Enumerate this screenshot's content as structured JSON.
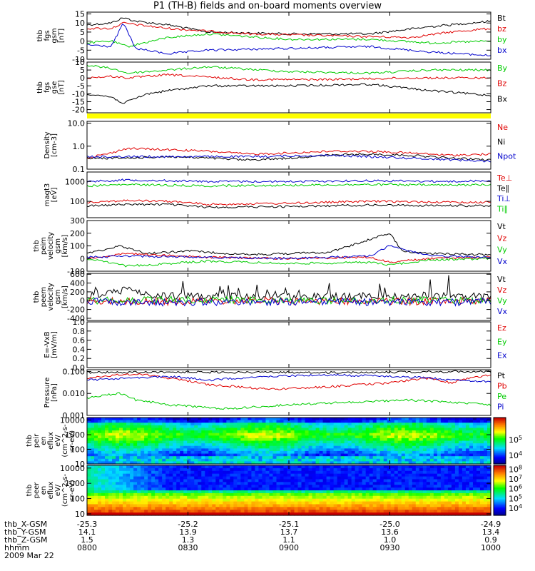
{
  "title": "P1  (TH-B) fields and on-board moments overview",
  "colors": {
    "black": "#000000",
    "red": "#e00000",
    "green": "#00cc00",
    "blue": "#0000cc",
    "yellow": "#ffff00"
  },
  "chart_data": [
    {
      "type": "line",
      "ylabel": [
        "thb",
        "fgs",
        "gsm",
        "[nT]"
      ],
      "ylim": [
        -10,
        16
      ],
      "yticks": [
        -10,
        -5,
        0,
        5,
        10,
        15
      ],
      "ytick_labels": [
        "-10",
        "-5",
        "0",
        "5",
        "10",
        "15"
      ],
      "legend": [
        {
          "name": "Bt",
          "color": "black"
        },
        {
          "name": "bz",
          "color": "red"
        },
        {
          "name": "by",
          "color": "green"
        },
        {
          "name": "bx",
          "color": "blue"
        }
      ],
      "series": [
        {
          "name": "Bt",
          "color": "black",
          "x": [
            0,
            0.06,
            0.09,
            0.12,
            0.2,
            0.3,
            0.5,
            0.7,
            0.85,
            1
          ],
          "values": [
            9,
            10,
            13,
            11,
            9,
            5,
            4,
            4,
            8,
            11
          ]
        },
        {
          "name": "bz",
          "color": "red",
          "x": [
            0,
            0.06,
            0.09,
            0.2,
            0.4,
            0.6,
            0.8,
            0.9,
            1
          ],
          "values": [
            7,
            7,
            10,
            7,
            4,
            3,
            2,
            5,
            7
          ]
        },
        {
          "name": "by",
          "color": "green",
          "x": [
            0,
            0.06,
            0.1,
            0.2,
            0.3,
            0.5,
            0.7,
            0.85,
            1
          ],
          "values": [
            -1,
            0,
            -3,
            2,
            4,
            1,
            1,
            -1,
            0
          ]
        },
        {
          "name": "bx",
          "color": "blue",
          "x": [
            0,
            0.06,
            0.09,
            0.12,
            0.2,
            0.3,
            0.5,
            0.7,
            0.85,
            1
          ],
          "values": [
            -2,
            -3,
            10,
            -4,
            -7,
            -5,
            -4,
            -3,
            -6,
            -8
          ]
        }
      ]
    },
    {
      "type": "line",
      "ylabel": [
        "thb",
        "fgs",
        "gse",
        "[nT]"
      ],
      "ylim": [
        -22,
        10
      ],
      "yticks": [
        -20,
        -15,
        -10,
        -5,
        0,
        5,
        10
      ],
      "ytick_labels": [
        "-20",
        "-15",
        "-10",
        "-5",
        "0",
        "5",
        "10"
      ],
      "legend": [
        {
          "name": "By",
          "color": "green"
        },
        {
          "name": "Bz",
          "color": "red"
        },
        {
          "name": "Bx",
          "color": "black"
        }
      ],
      "series": [
        {
          "name": "By",
          "color": "green",
          "x": [
            0,
            0.06,
            0.1,
            0.2,
            0.3,
            0.5,
            0.7,
            0.85,
            1
          ],
          "values": [
            8,
            6,
            3,
            5,
            7,
            4,
            3,
            5,
            5
          ]
        },
        {
          "name": "Bz",
          "color": "red",
          "x": [
            0,
            0.06,
            0.1,
            0.2,
            0.4,
            0.6,
            0.8,
            1
          ],
          "values": [
            0,
            1,
            0,
            2,
            -1,
            -1,
            0,
            0
          ]
        },
        {
          "name": "Bx",
          "color": "black",
          "x": [
            0,
            0.06,
            0.09,
            0.15,
            0.2,
            0.3,
            0.5,
            0.7,
            0.85,
            1
          ],
          "values": [
            -10,
            -12,
            -16,
            -10,
            -8,
            -5,
            -5,
            -4,
            -8,
            -11
          ]
        }
      ]
    },
    {
      "type": "line",
      "ylabel": [
        "Density",
        "[cm-3]"
      ],
      "scale": "log",
      "ylim": [
        0.1,
        12
      ],
      "yticks": [
        0.1,
        1.0,
        10.0
      ],
      "ytick_labels": [
        "0.1",
        "1.0",
        "10.0"
      ],
      "legend": [
        {
          "name": "Ne",
          "color": "red"
        },
        {
          "name": "Ni",
          "color": "black"
        },
        {
          "name": "Npot",
          "color": "blue"
        }
      ],
      "series": [
        {
          "name": "Ne",
          "color": "red",
          "x": [
            0,
            0.06,
            0.1,
            0.2,
            0.3,
            0.4,
            0.5,
            0.6,
            0.7,
            0.8,
            0.9,
            1
          ],
          "values": [
            0.3,
            0.5,
            0.8,
            0.7,
            0.6,
            0.45,
            0.5,
            0.6,
            0.6,
            0.5,
            0.4,
            0.45
          ]
        },
        {
          "name": "Ni",
          "color": "black",
          "x": [
            0,
            0.1,
            0.2,
            0.3,
            0.4,
            0.5,
            0.6,
            0.7,
            0.8,
            0.9,
            1
          ],
          "values": [
            0.3,
            0.3,
            0.35,
            0.3,
            0.25,
            0.3,
            0.4,
            0.45,
            0.4,
            0.3,
            0.25
          ]
        },
        {
          "name": "Npot",
          "color": "blue",
          "x": [
            0,
            0.2,
            0.4,
            0.6,
            0.8,
            1
          ],
          "values": [
            0.35,
            0.35,
            0.35,
            0.4,
            0.3,
            0.22
          ]
        }
      ]
    },
    {
      "type": "line",
      "ylabel": [
        "magt3",
        "[eV]"
      ],
      "scale": "log",
      "ylim": [
        15,
        3000
      ],
      "yticks": [
        100,
        1000
      ],
      "ytick_labels": [
        "100",
        "1000"
      ],
      "legend": [
        {
          "name": "Te⊥",
          "color": "red"
        },
        {
          "name": "Te∥",
          "color": "black"
        },
        {
          "name": "Ti⊥",
          "color": "blue"
        },
        {
          "name": "Ti∥",
          "color": "green"
        }
      ],
      "series": [
        {
          "name": "Ti⊥",
          "color": "blue",
          "x": [
            0,
            0.1,
            0.3,
            0.5,
            0.7,
            0.9,
            1
          ],
          "values": [
            1000,
            1200,
            1000,
            1000,
            1100,
            1000,
            1100
          ]
        },
        {
          "name": "Ti∥",
          "color": "green",
          "x": [
            0,
            0.1,
            0.3,
            0.5,
            0.7,
            0.9,
            1
          ],
          "values": [
            600,
            700,
            600,
            650,
            700,
            650,
            700
          ]
        },
        {
          "name": "Te⊥",
          "color": "red",
          "x": [
            0,
            0.1,
            0.2,
            0.3,
            0.5,
            0.7,
            0.9,
            1
          ],
          "values": [
            90,
            110,
            100,
            70,
            80,
            100,
            90,
            90
          ]
        },
        {
          "name": "Te∥",
          "color": "black",
          "x": [
            0,
            0.1,
            0.2,
            0.3,
            0.5,
            0.7,
            0.9,
            1
          ],
          "values": [
            60,
            70,
            70,
            50,
            55,
            65,
            60,
            60
          ]
        }
      ]
    },
    {
      "type": "line",
      "ylabel": [
        "thb",
        "peim",
        "velocity",
        "gsm",
        "[km/s]"
      ],
      "ylim": [
        -100,
        300
      ],
      "yticks": [
        -100,
        0,
        100,
        200,
        300
      ],
      "ytick_labels": [
        "-100",
        "0",
        "100",
        "200",
        "300"
      ],
      "legend": [
        {
          "name": "Vt",
          "color": "black"
        },
        {
          "name": "Vz",
          "color": "red"
        },
        {
          "name": "Vy",
          "color": "green"
        },
        {
          "name": "Vx",
          "color": "blue"
        }
      ],
      "series": [
        {
          "name": "Vt",
          "color": "black",
          "x": [
            0,
            0.08,
            0.15,
            0.25,
            0.4,
            0.6,
            0.75,
            0.78,
            0.85,
            1
          ],
          "values": [
            40,
            100,
            40,
            60,
            30,
            50,
            200,
            60,
            40,
            30
          ]
        },
        {
          "name": "Vz",
          "color": "red",
          "x": [
            0,
            0.1,
            0.3,
            0.5,
            0.7,
            0.75,
            0.85,
            1
          ],
          "values": [
            0,
            40,
            10,
            0,
            10,
            -30,
            0,
            10
          ]
        },
        {
          "name": "Vy",
          "color": "green",
          "x": [
            0,
            0.1,
            0.3,
            0.5,
            0.7,
            0.75,
            0.85,
            1
          ],
          "values": [
            0,
            -60,
            -20,
            -40,
            -30,
            -50,
            -10,
            0
          ]
        },
        {
          "name": "Vx",
          "color": "blue",
          "x": [
            0,
            0.1,
            0.3,
            0.5,
            0.7,
            0.75,
            0.85,
            1
          ],
          "values": [
            10,
            20,
            10,
            0,
            20,
            100,
            20,
            10
          ]
        }
      ]
    },
    {
      "type": "line",
      "ylabel": [
        "thb",
        "peem",
        "velocity",
        "gsm",
        "[km/s]"
      ],
      "ylim": [
        -450,
        620
      ],
      "yticks": [
        -400,
        -200,
        0,
        200,
        400,
        600
      ],
      "ytick_labels": [
        "-400",
        "-200",
        "0",
        "200",
        "400",
        "600"
      ],
      "legend": [
        {
          "name": "Vt",
          "color": "black"
        },
        {
          "name": "Vz",
          "color": "red"
        },
        {
          "name": "Vy",
          "color": "green"
        },
        {
          "name": "Vx",
          "color": "blue"
        }
      ],
      "series": [
        {
          "name": "Vt",
          "color": "black",
          "x": [
            0,
            0.1,
            0.15,
            0.3,
            0.5,
            0.7,
            0.85,
            1
          ],
          "values": [
            100,
            250,
            120,
            100,
            90,
            100,
            120,
            90
          ]
        },
        {
          "name": "Vz",
          "color": "red",
          "x": [
            0,
            0.2,
            0.4,
            0.6,
            0.8,
            1
          ],
          "values": [
            0,
            -20,
            0,
            -10,
            -20,
            0
          ]
        },
        {
          "name": "Vy",
          "color": "green",
          "x": [
            0,
            0.2,
            0.4,
            0.6,
            0.8,
            1
          ],
          "values": [
            0,
            20,
            10,
            0,
            10,
            0
          ]
        },
        {
          "name": "Vx",
          "color": "blue",
          "x": [
            0,
            0.2,
            0.4,
            0.6,
            0.8,
            1
          ],
          "values": [
            -20,
            -40,
            -30,
            -20,
            -40,
            -30
          ]
        }
      ]
    },
    {
      "type": "line",
      "ylabel": [
        "E=-VxB",
        "[mV/m]"
      ],
      "ylim": [
        0,
        1.0
      ],
      "yticks": [
        0,
        0.2,
        0.4,
        0.6,
        0.8,
        1.0
      ],
      "ytick_labels": [
        "0.0",
        "0.2",
        "0.4",
        "0.6",
        "0.8",
        "1.0"
      ],
      "legend": [
        {
          "name": "Ez",
          "color": "red"
        },
        {
          "name": "Ey",
          "color": "green"
        },
        {
          "name": "Ex",
          "color": "blue"
        }
      ],
      "series": []
    },
    {
      "type": "line",
      "ylabel": [
        "Pressure",
        "[nPa]"
      ],
      "scale": "log",
      "ylim": [
        0.001,
        0.12
      ],
      "yticks": [
        0.001,
        0.01,
        0.1
      ],
      "ytick_labels": [
        "0.001",
        "0.010",
        "0.100"
      ],
      "legend": [
        {
          "name": "Pt",
          "color": "black"
        },
        {
          "name": "Pb",
          "color": "red"
        },
        {
          "name": "Pe",
          "color": "green"
        },
        {
          "name": "Pi",
          "color": "blue"
        }
      ],
      "series": [
        {
          "name": "Pt",
          "color": "black",
          "x": [
            0,
            0.2,
            0.4,
            0.6,
            0.8,
            1
          ],
          "values": [
            0.09,
            0.095,
            0.09,
            0.09,
            0.095,
            0.1
          ]
        },
        {
          "name": "Pb",
          "color": "red",
          "x": [
            0,
            0.08,
            0.12,
            0.2,
            0.3,
            0.45,
            0.6,
            0.75,
            0.85,
            0.9,
            1
          ],
          "values": [
            0.05,
            0.07,
            0.08,
            0.05,
            0.025,
            0.015,
            0.02,
            0.03,
            0.05,
            0.03,
            0.07
          ]
        },
        {
          "name": "Pe",
          "color": "green",
          "x": [
            0,
            0.08,
            0.12,
            0.2,
            0.35,
            0.5,
            0.65,
            0.8,
            0.9,
            1
          ],
          "values": [
            0.006,
            0.01,
            0.005,
            0.003,
            0.002,
            0.003,
            0.004,
            0.005,
            0.004,
            0.003
          ]
        },
        {
          "name": "Pi",
          "color": "blue",
          "x": [
            0,
            0.1,
            0.2,
            0.3,
            0.45,
            0.6,
            0.75,
            0.85,
            0.9,
            1
          ],
          "values": [
            0.04,
            0.05,
            0.06,
            0.04,
            0.06,
            0.07,
            0.06,
            0.05,
            0.04,
            0.035
          ]
        }
      ]
    },
    {
      "type": "heatmap",
      "ylabel": [
        "thb",
        "peir",
        "en",
        "eflux",
        "eV/",
        "(cm^2-s-",
        "sr-eV)"
      ],
      "scale": "log",
      "ylim": [
        10,
        15000
      ],
      "yticks": [
        10,
        100,
        1000,
        10000
      ],
      "ytick_labels": [
        "10",
        "100",
        "1000",
        "10000"
      ],
      "colorbar": {
        "ticks": [
          4,
          5
        ],
        "tick_labels": [
          "10^4",
          "10^5"
        ]
      }
    },
    {
      "type": "heatmap",
      "ylabel": [
        "thb",
        "peer",
        "en",
        "eflux",
        "eV/",
        "(cm^2-s-",
        "sr-eV)"
      ],
      "scale": "log",
      "ylim": [
        8,
        15000
      ],
      "yticks": [
        10,
        100,
        1000,
        10000
      ],
      "ytick_labels": [
        "10",
        "100",
        "1000",
        "10000"
      ],
      "colorbar": {
        "ticks": [
          4,
          5,
          6,
          7,
          8
        ],
        "tick_labels": [
          "10^4",
          "10^5",
          "10^6",
          "10^7",
          "10^8"
        ]
      }
    }
  ],
  "xaxis": {
    "tick_positions": [
      0,
      0.25,
      0.5,
      0.75,
      1.0
    ],
    "rows": [
      {
        "label": "thb_X-GSM",
        "values": [
          "-25.3",
          "-25.2",
          "-25.1",
          "-25.0",
          "-24.9"
        ]
      },
      {
        "label": "thb_Y-GSM",
        "values": [
          "14.1",
          "13.9",
          "13.7",
          "13.6",
          "13.4"
        ]
      },
      {
        "label": "thb_Z-GSM",
        "values": [
          "1.5",
          "1.3",
          "1.1",
          "1.0",
          "0.9"
        ]
      },
      {
        "label": "hhmm",
        "values": [
          "0800",
          "0830",
          "0900",
          "0930",
          "1000"
        ]
      }
    ],
    "date": "2009 Mar 22"
  }
}
